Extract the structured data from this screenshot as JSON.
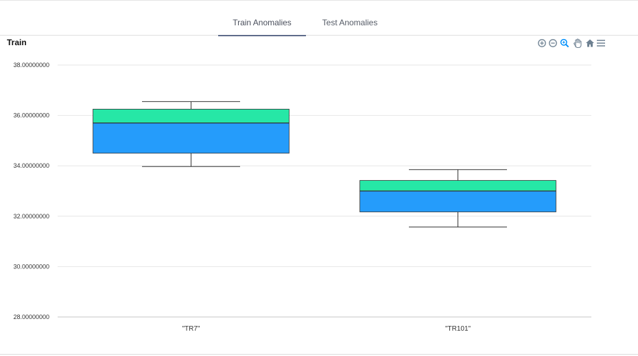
{
  "tabs": [
    {
      "label": "Train Anomalies",
      "active": true
    },
    {
      "label": "Test Anomalies",
      "active": false
    }
  ],
  "chart_title": "Train",
  "toolbar": [
    "zoom-in-icon",
    "zoom-out-icon",
    "selection-zoom-icon",
    "pan-icon",
    "home-icon",
    "menu-icon"
  ],
  "chart_data": {
    "type": "boxplot",
    "title": "Train",
    "categories": [
      "\"TR7\"",
      "\"TR101\""
    ],
    "boxes": [
      {
        "category": "\"TR7\"",
        "min": 33.97,
        "q1": 34.5,
        "median": 35.7,
        "q3": 36.25,
        "max": 36.55
      },
      {
        "category": "\"TR101\"",
        "min": 31.57,
        "q1": 32.17,
        "median": 33.0,
        "q3": 33.42,
        "max": 33.85
      }
    ],
    "ylim": [
      28,
      38
    ],
    "yticks": [
      "38.00000000",
      "36.00000000",
      "34.00000000",
      "32.00000000",
      "30.00000000",
      "28.00000000"
    ],
    "ytick_values": [
      38,
      36,
      34,
      32,
      30,
      28
    ],
    "grid": true,
    "colors": {
      "upper_box": "#26e7a6",
      "lower_box": "#259cfb",
      "stroke": "#333333"
    }
  }
}
